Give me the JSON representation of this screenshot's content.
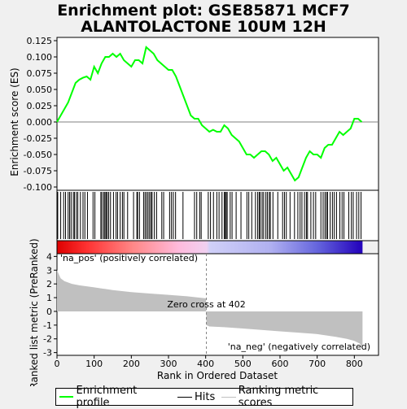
{
  "title_line1": "Enrichment plot: GSE85871 MCF7",
  "title_line2": "ALANTOLACTONE 10UM 12H",
  "colors": {
    "enrichment": "#00ff00",
    "hits": "#000000",
    "ranking": "#c0c0c0",
    "pos_label": "#cc0000",
    "neg_label": "#0000aa",
    "zero_line": "#808080"
  },
  "legend": {
    "enrichment_label": "Enrichment profile",
    "hits_label": "Hits",
    "ranking_label": "Ranking metric scores"
  },
  "annotations": {
    "pos_label": "'na_pos' (positively correlated)",
    "neg_label": "'na_neg' (negatively correlated)",
    "zero_cross": "Zero cross at 402"
  },
  "chart_data": [
    {
      "type": "line",
      "name": "enrichment-profile",
      "ylabel": "Enrichment score (ES)",
      "ylim": [
        -0.105,
        0.13
      ],
      "yticks": [
        -0.1,
        -0.075,
        -0.05,
        -0.025,
        0.0,
        0.025,
        0.05,
        0.075,
        0.1,
        0.125
      ],
      "ytick_labels": [
        "-0.100",
        "-0.075",
        "-0.050",
        "-0.025",
        "0.000",
        "0.025",
        "0.050",
        "0.075",
        "0.100",
        "0.125"
      ],
      "x": [
        0,
        10,
        20,
        30,
        40,
        50,
        60,
        70,
        80,
        90,
        100,
        110,
        120,
        130,
        140,
        150,
        160,
        170,
        180,
        190,
        200,
        210,
        220,
        230,
        240,
        250,
        260,
        270,
        280,
        290,
        300,
        310,
        320,
        330,
        340,
        350,
        360,
        370,
        380,
        390,
        400,
        410,
        420,
        430,
        440,
        450,
        460,
        470,
        480,
        490,
        500,
        510,
        520,
        530,
        540,
        550,
        560,
        570,
        580,
        590,
        600,
        610,
        620,
        630,
        640,
        650,
        660,
        670,
        680,
        690,
        700,
        710,
        720,
        730,
        740,
        750,
        760,
        770,
        780,
        790,
        800,
        810,
        820
      ],
      "values": [
        0.0,
        0.01,
        0.02,
        0.03,
        0.045,
        0.06,
        0.065,
        0.068,
        0.07,
        0.065,
        0.085,
        0.075,
        0.09,
        0.1,
        0.1,
        0.105,
        0.1,
        0.105,
        0.095,
        0.09,
        0.085,
        0.095,
        0.095,
        0.09,
        0.115,
        0.11,
        0.105,
        0.095,
        0.09,
        0.085,
        0.08,
        0.08,
        0.07,
        0.055,
        0.04,
        0.025,
        0.01,
        0.005,
        0.005,
        -0.005,
        -0.01,
        -0.015,
        -0.012,
        -0.015,
        -0.015,
        -0.005,
        -0.01,
        -0.02,
        -0.025,
        -0.03,
        -0.04,
        -0.05,
        -0.05,
        -0.055,
        -0.05,
        -0.045,
        -0.045,
        -0.05,
        -0.06,
        -0.055,
        -0.065,
        -0.075,
        -0.07,
        -0.08,
        -0.09,
        -0.085,
        -0.07,
        -0.055,
        -0.045,
        -0.05,
        -0.05,
        -0.055,
        -0.04,
        -0.035,
        -0.035,
        -0.025,
        -0.015,
        -0.02,
        -0.015,
        -0.01,
        0.005,
        0.005,
        0.0
      ]
    },
    {
      "type": "bar",
      "name": "hits",
      "hit_ranks": [
        2,
        10,
        18,
        23,
        30,
        34,
        38,
        44,
        47,
        52,
        56,
        63,
        70,
        75,
        82,
        97,
        102,
        118,
        121,
        126,
        129,
        132,
        135,
        139,
        144,
        152,
        159,
        163,
        170,
        176,
        180,
        190,
        206,
        215,
        217,
        222,
        233,
        237,
        241,
        245,
        249,
        253,
        256,
        262,
        268,
        282,
        287,
        303,
        308,
        313,
        319,
        339,
        370,
        376,
        384,
        388,
        407,
        413,
        421,
        430,
        436,
        444,
        450,
        453,
        455,
        458,
        466,
        471,
        482,
        495,
        511,
        516,
        524,
        534,
        540,
        544,
        547,
        552,
        556,
        562,
        566,
        571,
        574,
        581,
        594,
        607,
        612,
        617,
        627,
        639,
        648,
        654,
        659,
        666,
        671,
        674,
        683,
        690,
        696,
        710,
        716,
        721,
        725,
        728,
        735,
        741,
        746,
        752,
        761,
        767,
        772,
        785,
        792,
        797,
        806,
        812,
        818
      ]
    },
    {
      "type": "area",
      "name": "ranking-metric",
      "xlabel": "Rank in Ordered Dataset",
      "ylabel": "Ranked list metric (PreRanked)",
      "xlim": [
        0,
        865
      ],
      "xticks": [
        0,
        100,
        200,
        300,
        400,
        500,
        600,
        700,
        800
      ],
      "ylim": [
        -3.2,
        4.2
      ],
      "yticks": [
        -3,
        -2,
        -1,
        0,
        1,
        2,
        3,
        4
      ],
      "zero_cross": 402,
      "n": 822,
      "x": [
        0,
        5,
        10,
        20,
        40,
        60,
        100,
        150,
        200,
        250,
        300,
        350,
        400,
        401,
        402,
        410,
        450,
        500,
        550,
        600,
        650,
        700,
        750,
        780,
        800,
        815,
        822
      ],
      "values": [
        3.0,
        2.7,
        2.4,
        2.2,
        2.0,
        1.9,
        1.75,
        1.55,
        1.4,
        1.3,
        1.2,
        1.1,
        0.95,
        0.9,
        -1.0,
        -1.1,
        -1.15,
        -1.25,
        -1.35,
        -1.45,
        -1.55,
        -1.65,
        -1.85,
        -2.0,
        -2.15,
        -2.35,
        -2.8
      ]
    }
  ]
}
